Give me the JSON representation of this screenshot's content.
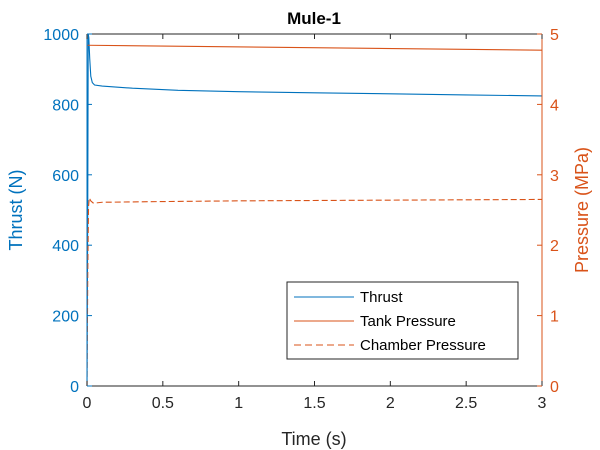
{
  "chart_data": {
    "type": "line",
    "title": "Mule-1",
    "xlabel": "Time (s)",
    "ylabel_left": "Thrust (N)",
    "ylabel_right": "Pressure (MPa)",
    "xlim": [
      0,
      3
    ],
    "ylim_left": [
      0,
      1000
    ],
    "ylim_right": [
      0,
      5
    ],
    "xticks": [
      0,
      0.5,
      1,
      1.5,
      2,
      2.5,
      3
    ],
    "xtick_labels": [
      "0",
      "0.5",
      "1",
      "1.5",
      "2",
      "2.5",
      "3"
    ],
    "yticks_left": [
      0,
      200,
      400,
      600,
      800,
      1000
    ],
    "ytick_labels_left": [
      "0",
      "200",
      "400",
      "600",
      "800",
      "1000"
    ],
    "yticks_right": [
      0,
      1,
      2,
      3,
      4,
      5
    ],
    "ytick_labels_right": [
      "0",
      "1",
      "2",
      "3",
      "4",
      "5"
    ],
    "grid": false,
    "legend_position": "bottom-right",
    "colors": {
      "left_axis": "#0072BD",
      "right_axis": "#D95319"
    },
    "series": [
      {
        "name": "Thrust",
        "axis": "left",
        "style": "solid",
        "color": "#0072BD",
        "x": [
          0,
          0.005,
          0.008,
          0.012,
          0.018,
          0.025,
          0.035,
          0.05,
          0.1,
          0.3,
          0.6,
          1,
          1.5,
          2,
          2.5,
          3
        ],
        "y": [
          0,
          520,
          1000,
          990,
          930,
          880,
          862,
          855,
          852,
          846,
          840,
          836,
          833,
          830,
          827,
          824
        ]
      },
      {
        "name": "Tank Pressure",
        "axis": "right",
        "style": "solid",
        "color": "#D95319",
        "x": [
          0,
          3
        ],
        "y": [
          4.84,
          4.77
        ]
      },
      {
        "name": "Chamber Pressure",
        "axis": "right",
        "style": "dashed",
        "color": "#D95319",
        "x": [
          0,
          0.005,
          0.01,
          0.015,
          0.025,
          0.04,
          0.06,
          0.1,
          0.5,
          1,
          2,
          3
        ],
        "y": [
          0,
          1.6,
          2.55,
          2.67,
          2.63,
          2.6,
          2.6,
          2.61,
          2.62,
          2.63,
          2.64,
          2.65
        ]
      }
    ]
  }
}
